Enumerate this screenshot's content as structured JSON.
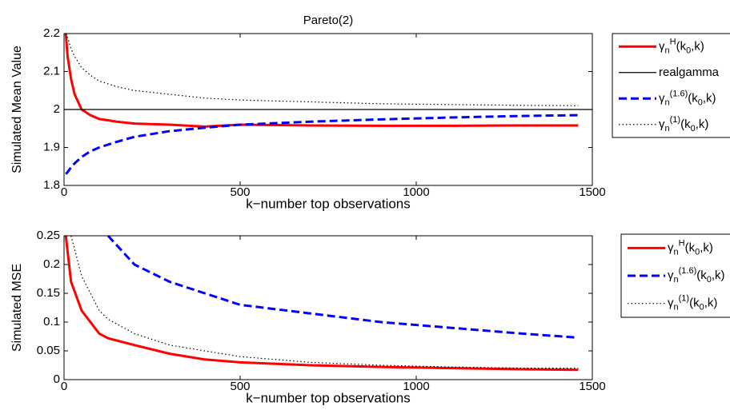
{
  "chart_data": [
    {
      "type": "line",
      "title": "Pareto(2)",
      "xlabel": "k−number top observations",
      "ylabel": "Simulated Mean Value",
      "x": [
        5,
        10,
        20,
        30,
        50,
        75,
        100,
        150,
        200,
        300,
        400,
        500,
        700,
        900,
        1100,
        1300,
        1460
      ],
      "xlim": [
        0,
        1500
      ],
      "xticks": [
        0,
        500,
        1000,
        1500
      ],
      "ylim": [
        1.8,
        2.2
      ],
      "yticks": [
        1.8,
        1.9,
        2,
        2.1,
        2.2
      ],
      "legend": "outside-right",
      "series": [
        {
          "name": "γ_n^{H}(k_0,k)",
          "color": "#ff0000",
          "dash": "solid",
          "width": 3,
          "values": [
            2.2,
            2.14,
            2.08,
            2.04,
            2.0,
            1.985,
            1.975,
            1.968,
            1.963,
            1.96,
            1.955,
            1.96,
            1.958,
            1.957,
            1.957,
            1.958,
            1.958
          ]
        },
        {
          "name": "realgamma",
          "color": "#000000",
          "dash": "solid",
          "width": 1.2,
          "x": [
            0,
            1500
          ],
          "values": [
            2,
            2
          ]
        },
        {
          "name": "γ_n^{(1.6)}(k_0,k)",
          "color": "#0000ff",
          "dash": "dashed",
          "width": 3,
          "values": [
            1.83,
            1.835,
            1.848,
            1.858,
            1.875,
            1.89,
            1.9,
            1.915,
            1.928,
            1.943,
            1.952,
            1.96,
            1.968,
            1.974,
            1.979,
            1.983,
            1.985
          ]
        },
        {
          "name": "γ_n^{(1)}(k_0,k)",
          "color": "#000000",
          "dash": "dotted",
          "width": 1.2,
          "values": [
            2.2,
            2.19,
            2.16,
            2.14,
            2.11,
            2.09,
            2.075,
            2.06,
            2.05,
            2.04,
            2.03,
            2.025,
            2.02,
            2.015,
            2.013,
            2.011,
            2.01
          ]
        }
      ]
    },
    {
      "type": "line",
      "xlabel": "k−number top observations",
      "ylabel": "Simulated MSE",
      "x": [
        5,
        20,
        50,
        100,
        125,
        200,
        300,
        400,
        500,
        700,
        900,
        1100,
        1300,
        1460
      ],
      "xlim": [
        0,
        1500
      ],
      "xticks": [
        0,
        500,
        1000,
        1500
      ],
      "ylim": [
        0,
        0.25
      ],
      "yticks": [
        0,
        0.05,
        0.1,
        0.15,
        0.2,
        0.25
      ],
      "legend": "outside-right",
      "series": [
        {
          "name": "γ_n^{H}(k_0,k)",
          "color": "#ff0000",
          "dash": "solid",
          "width": 3,
          "values": [
            0.25,
            0.17,
            0.12,
            0.08,
            0.072,
            0.06,
            0.045,
            0.035,
            0.03,
            0.025,
            0.022,
            0.02,
            0.018,
            0.017
          ]
        },
        {
          "name": "γ_n^{(1.6)}(k_0,k)",
          "color": "#0000ff",
          "dash": "dashed",
          "width": 3,
          "values": [
            null,
            null,
            null,
            null,
            0.25,
            0.2,
            0.17,
            0.15,
            0.13,
            0.115,
            0.1,
            0.09,
            0.08,
            0.073
          ]
        },
        {
          "name": "γ_n^{(1)}(k_0,k)",
          "color": "#000000",
          "dash": "dotted",
          "width": 1.2,
          "values": [
            null,
            0.25,
            0.18,
            0.12,
            0.105,
            0.08,
            0.06,
            0.05,
            0.04,
            0.03,
            0.025,
            0.022,
            0.02,
            0.02
          ]
        }
      ]
    }
  ]
}
